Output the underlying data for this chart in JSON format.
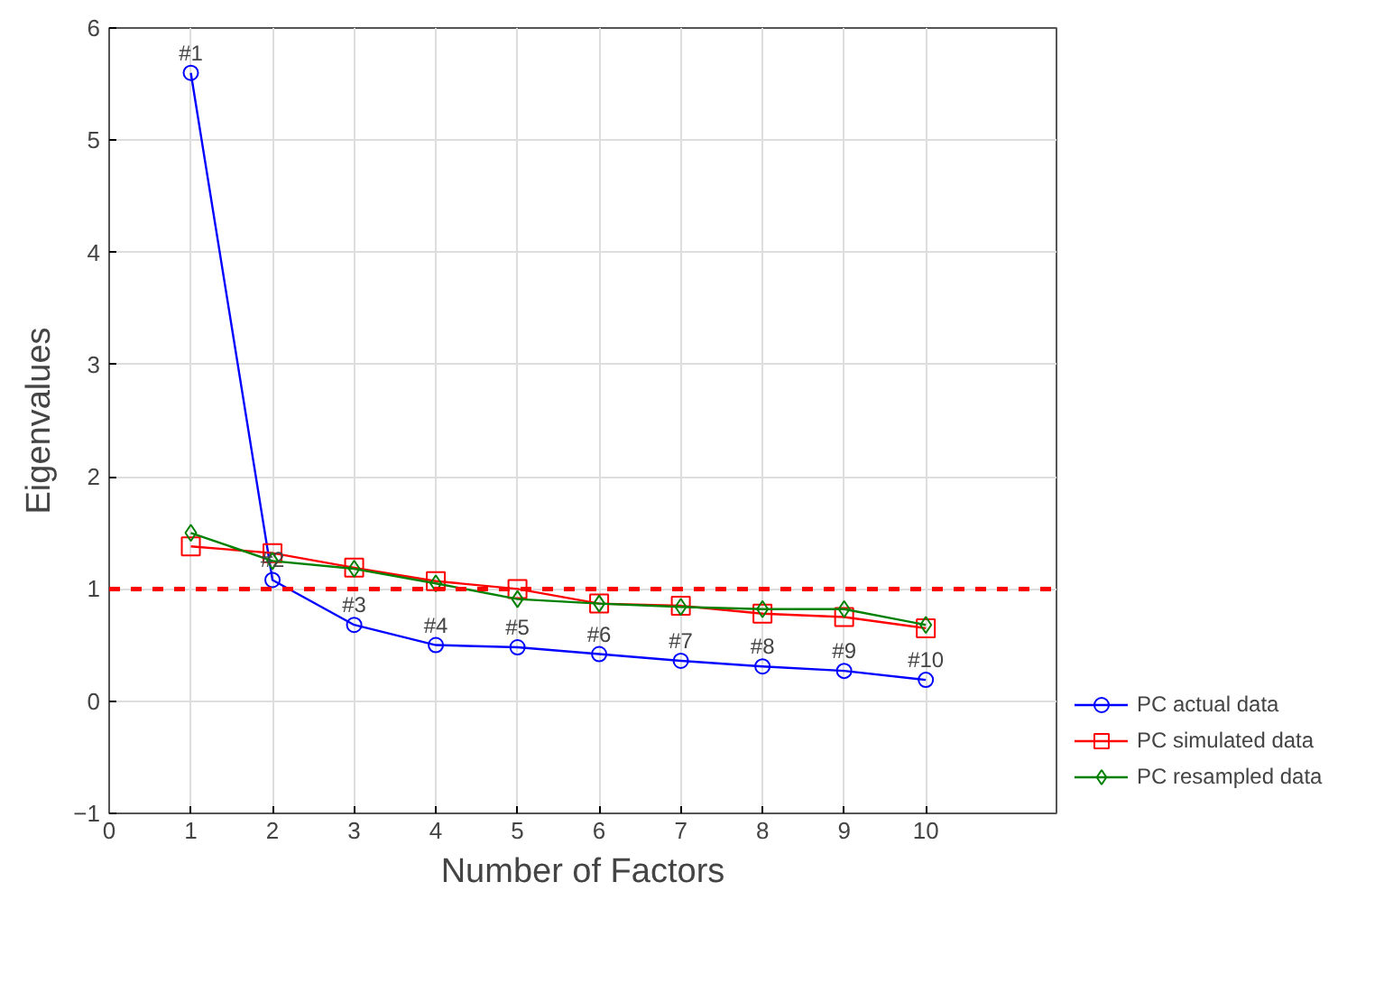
{
  "chart_data": {
    "type": "line",
    "xlabel": "Number of Factors",
    "ylabel": "Eigenvalues",
    "x": [
      1,
      2,
      3,
      4,
      5,
      6,
      7,
      8,
      9,
      10
    ],
    "series": [
      {
        "name": "PC actual data",
        "color": "#0000ff",
        "marker": "circle",
        "values": [
          5.6,
          1.08,
          0.68,
          0.5,
          0.48,
          0.42,
          0.36,
          0.31,
          0.27,
          0.19
        ]
      },
      {
        "name": "PC simulated data",
        "color": "#ff0000",
        "marker": "square",
        "values": [
          1.38,
          1.32,
          1.19,
          1.07,
          1.0,
          0.87,
          0.85,
          0.78,
          0.75,
          0.65
        ]
      },
      {
        "name": "PC resampled data",
        "color": "#008000",
        "marker": "diamond",
        "values": [
          1.5,
          1.25,
          1.18,
          1.05,
          0.91,
          0.87,
          0.84,
          0.82,
          0.82,
          0.68
        ]
      }
    ],
    "annotations": [
      {
        "text": "#1",
        "x": 1,
        "y": 5.6
      },
      {
        "text": "#2",
        "x": 2,
        "y": 1.08
      },
      {
        "text": "#3",
        "x": 3,
        "y": 0.68
      },
      {
        "text": "#4",
        "x": 4,
        "y": 0.5
      },
      {
        "text": "#5",
        "x": 5,
        "y": 0.48
      },
      {
        "text": "#6",
        "x": 6,
        "y": 0.42
      },
      {
        "text": "#7",
        "x": 7,
        "y": 0.36
      },
      {
        "text": "#8",
        "x": 8,
        "y": 0.31
      },
      {
        "text": "#9",
        "x": 9,
        "y": 0.27
      },
      {
        "text": "#10",
        "x": 10,
        "y": 0.19
      }
    ],
    "ref_lines": [
      {
        "axis": "y",
        "value": 1,
        "color": "#ff0000",
        "line_style": "dashed"
      }
    ],
    "xlim": [
      0,
      11.6
    ],
    "ylim": [
      -1,
      6
    ],
    "xticks": [
      0,
      1,
      2,
      3,
      4,
      5,
      6,
      7,
      8,
      9,
      10
    ],
    "yticks": [
      -1,
      0,
      1,
      2,
      3,
      4,
      5,
      6
    ],
    "grid": true,
    "legend": "bottom right",
    "line_style": "solid"
  }
}
